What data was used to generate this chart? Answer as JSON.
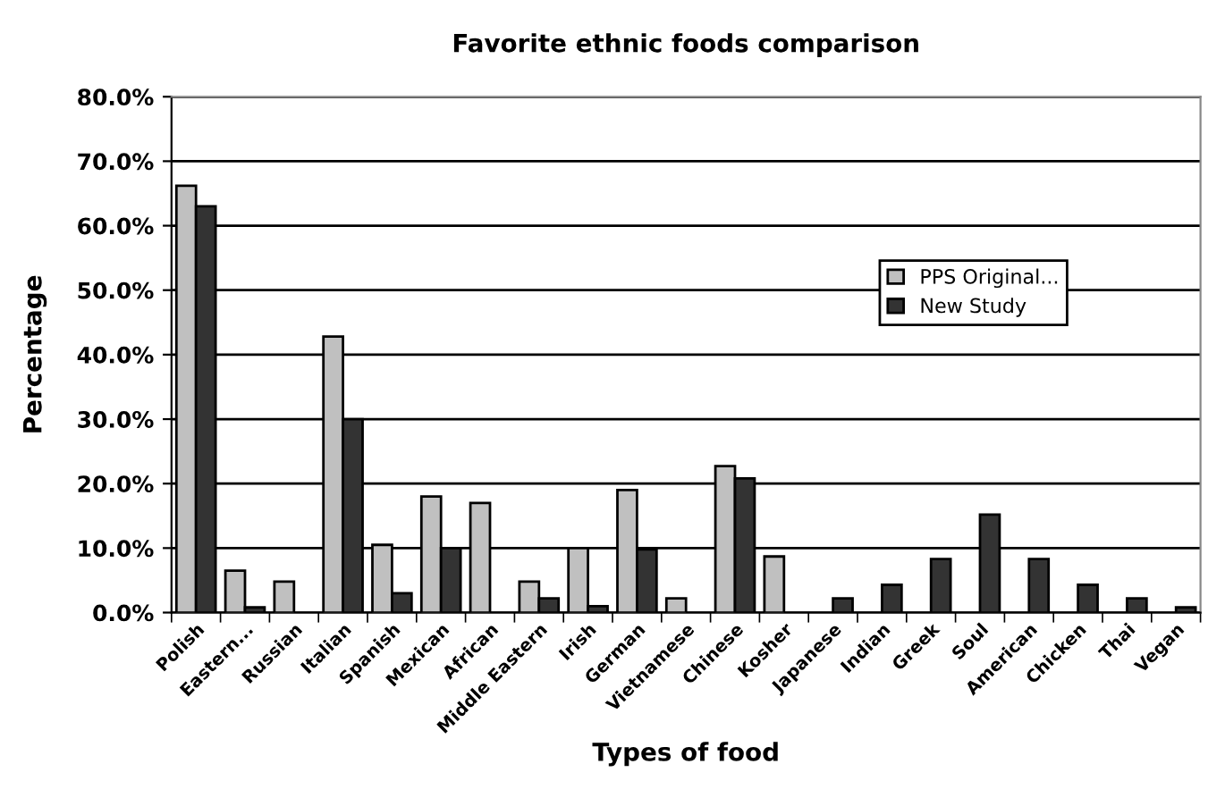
{
  "chart_data": {
    "type": "bar",
    "title": "Favorite ethnic foods comparison",
    "xlabel": "Types of food",
    "ylabel": "Percentage",
    "categories": [
      "Polish",
      "Eastern...",
      "Russian",
      "Italian",
      "Spanish",
      "Mexican",
      "African",
      "Middle Eastern",
      "Irish",
      "German",
      "Vietnamese",
      "Chinese",
      "Kosher",
      "Japanese",
      "Indian",
      "Greek",
      "Soul",
      "American",
      "Chicken",
      "Thai",
      "Vegan"
    ],
    "series": [
      {
        "name": "PPS Original...",
        "color": "#c0c0c0",
        "values": [
          66.2,
          6.5,
          4.8,
          42.8,
          10.5,
          18,
          17,
          4.8,
          10,
          19,
          2.2,
          22.7,
          8.7,
          null,
          null,
          null,
          null,
          null,
          null,
          null,
          null
        ]
      },
      {
        "name": "New Study",
        "color": "#333333",
        "values": [
          63,
          0.8,
          null,
          30,
          3,
          10,
          null,
          2.2,
          1,
          9.8,
          null,
          20.8,
          null,
          2.2,
          4.3,
          8.3,
          15.2,
          8.3,
          4.3,
          2.2,
          0.8
        ]
      }
    ],
    "ylim": [
      0,
      80
    ],
    "yticks": [
      {
        "value": 0,
        "label": "0.0%"
      },
      {
        "value": 10,
        "label": "10.0%"
      },
      {
        "value": 20,
        "label": "20.0%"
      },
      {
        "value": 30,
        "label": "30.0%"
      },
      {
        "value": 40,
        "label": "40.0%"
      },
      {
        "value": 50,
        "label": "50.0%"
      },
      {
        "value": 60,
        "label": "60.0%"
      },
      {
        "value": 70,
        "label": "70.0%"
      },
      {
        "value": 80,
        "label": "80.0%"
      }
    ],
    "grid": "y",
    "legend": "right"
  }
}
